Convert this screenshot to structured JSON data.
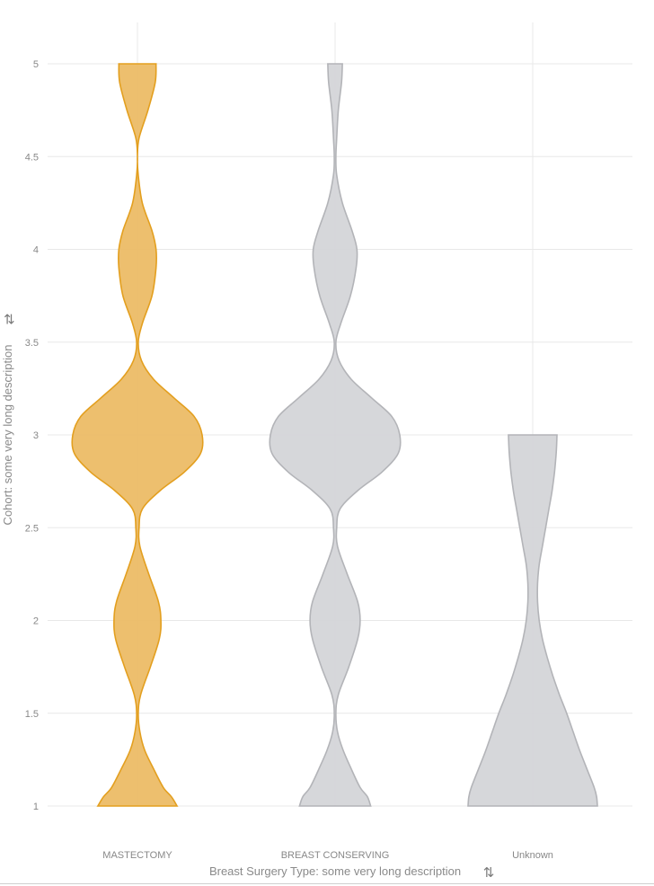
{
  "chart_data": {
    "type": "violin",
    "title": "",
    "xlabel": "Breast Surgery Type: some very long description",
    "ylabel": "Cohort: some very long description",
    "ylim": [
      1,
      5
    ],
    "y_ticks": [
      1,
      1.5,
      2,
      2.5,
      3,
      3.5,
      4,
      4.5,
      5
    ],
    "y_tick_labels": [
      "1",
      "1.5",
      "2",
      "2.5",
      "3",
      "3.5",
      "4",
      "4.5",
      "5"
    ],
    "grid": true,
    "categories": [
      "MASTECTOMY",
      "BREAST CONSERVING",
      "Unknown"
    ],
    "series": [
      {
        "category": "MASTECTOMY",
        "highlighted": true,
        "density": [
          {
            "y": 1.0,
            "w": 0.49
          },
          {
            "y": 1.05,
            "w": 0.42
          },
          {
            "y": 1.1,
            "w": 0.32
          },
          {
            "y": 1.2,
            "w": 0.2
          },
          {
            "y": 1.3,
            "w": 0.09
          },
          {
            "y": 1.4,
            "w": 0.03
          },
          {
            "y": 1.5,
            "w": 0.01
          },
          {
            "y": 1.6,
            "w": 0.04
          },
          {
            "y": 1.75,
            "w": 0.16
          },
          {
            "y": 1.9,
            "w": 0.27
          },
          {
            "y": 2.0,
            "w": 0.29
          },
          {
            "y": 2.1,
            "w": 0.26
          },
          {
            "y": 2.25,
            "w": 0.14
          },
          {
            "y": 2.4,
            "w": 0.03
          },
          {
            "y": 2.5,
            "w": 0.02
          },
          {
            "y": 2.6,
            "w": 0.06
          },
          {
            "y": 2.7,
            "w": 0.28
          },
          {
            "y": 2.8,
            "w": 0.58
          },
          {
            "y": 2.9,
            "w": 0.78
          },
          {
            "y": 3.0,
            "w": 0.8
          },
          {
            "y": 3.1,
            "w": 0.7
          },
          {
            "y": 3.2,
            "w": 0.45
          },
          {
            "y": 3.3,
            "w": 0.2
          },
          {
            "y": 3.4,
            "w": 0.05
          },
          {
            "y": 3.5,
            "w": 0.01
          },
          {
            "y": 3.6,
            "w": 0.06
          },
          {
            "y": 3.75,
            "w": 0.18
          },
          {
            "y": 3.9,
            "w": 0.23
          },
          {
            "y": 4.0,
            "w": 0.23
          },
          {
            "y": 4.1,
            "w": 0.18
          },
          {
            "y": 4.25,
            "w": 0.06
          },
          {
            "y": 4.4,
            "w": 0.01
          },
          {
            "y": 4.5,
            "w": 0.0
          },
          {
            "y": 4.6,
            "w": 0.02
          },
          {
            "y": 4.75,
            "w": 0.13
          },
          {
            "y": 4.9,
            "w": 0.22
          },
          {
            "y": 5.0,
            "w": 0.23
          }
        ]
      },
      {
        "category": "BREAST CONSERVING",
        "highlighted": false,
        "density": [
          {
            "y": 1.0,
            "w": 0.44
          },
          {
            "y": 1.05,
            "w": 0.4
          },
          {
            "y": 1.1,
            "w": 0.31
          },
          {
            "y": 1.2,
            "w": 0.2
          },
          {
            "y": 1.3,
            "w": 0.1
          },
          {
            "y": 1.4,
            "w": 0.03
          },
          {
            "y": 1.5,
            "w": 0.01
          },
          {
            "y": 1.6,
            "w": 0.04
          },
          {
            "y": 1.75,
            "w": 0.17
          },
          {
            "y": 1.9,
            "w": 0.28
          },
          {
            "y": 2.0,
            "w": 0.31
          },
          {
            "y": 2.1,
            "w": 0.28
          },
          {
            "y": 2.25,
            "w": 0.15
          },
          {
            "y": 2.4,
            "w": 0.03
          },
          {
            "y": 2.5,
            "w": 0.02
          },
          {
            "y": 2.6,
            "w": 0.06
          },
          {
            "y": 2.7,
            "w": 0.28
          },
          {
            "y": 2.8,
            "w": 0.58
          },
          {
            "y": 2.9,
            "w": 0.78
          },
          {
            "y": 3.0,
            "w": 0.8
          },
          {
            "y": 3.1,
            "w": 0.7
          },
          {
            "y": 3.2,
            "w": 0.45
          },
          {
            "y": 3.3,
            "w": 0.2
          },
          {
            "y": 3.4,
            "w": 0.05
          },
          {
            "y": 3.5,
            "w": 0.01
          },
          {
            "y": 3.6,
            "w": 0.07
          },
          {
            "y": 3.75,
            "w": 0.19
          },
          {
            "y": 3.9,
            "w": 0.26
          },
          {
            "y": 4.0,
            "w": 0.27
          },
          {
            "y": 4.1,
            "w": 0.21
          },
          {
            "y": 4.25,
            "w": 0.09
          },
          {
            "y": 4.4,
            "w": 0.02
          },
          {
            "y": 4.5,
            "w": 0.01
          },
          {
            "y": 4.6,
            "w": 0.02
          },
          {
            "y": 4.75,
            "w": 0.04
          },
          {
            "y": 4.9,
            "w": 0.08
          },
          {
            "y": 5.0,
            "w": 0.09
          }
        ]
      },
      {
        "category": "Unknown",
        "highlighted": false,
        "density": [
          {
            "y": 1.0,
            "w": 0.8
          },
          {
            "y": 1.05,
            "w": 0.79
          },
          {
            "y": 1.1,
            "w": 0.76
          },
          {
            "y": 1.2,
            "w": 0.67
          },
          {
            "y": 1.3,
            "w": 0.58
          },
          {
            "y": 1.4,
            "w": 0.5
          },
          {
            "y": 1.5,
            "w": 0.42
          },
          {
            "y": 1.6,
            "w": 0.33
          },
          {
            "y": 1.7,
            "w": 0.25
          },
          {
            "y": 1.8,
            "w": 0.18
          },
          {
            "y": 1.9,
            "w": 0.12
          },
          {
            "y": 2.0,
            "w": 0.08
          },
          {
            "y": 2.1,
            "w": 0.06
          },
          {
            "y": 2.2,
            "w": 0.06
          },
          {
            "y": 2.3,
            "w": 0.08
          },
          {
            "y": 2.4,
            "w": 0.12
          },
          {
            "y": 2.5,
            "w": 0.16
          },
          {
            "y": 2.6,
            "w": 0.2
          },
          {
            "y": 2.7,
            "w": 0.24
          },
          {
            "y": 2.8,
            "w": 0.27
          },
          {
            "y": 2.9,
            "w": 0.29
          },
          {
            "y": 3.0,
            "w": 0.3
          }
        ]
      }
    ]
  },
  "colors": {
    "highlight_fill": "#ecbc66",
    "highlight_stroke": "#e39f1f",
    "default_fill": "#d4d5d8",
    "default_stroke": "#b3b4b8",
    "grid": "#e8e8e8",
    "text": "#888888"
  },
  "icons": {
    "x_swap": "sort-swap-icon",
    "y_swap": "swap-horizontal-icon"
  }
}
